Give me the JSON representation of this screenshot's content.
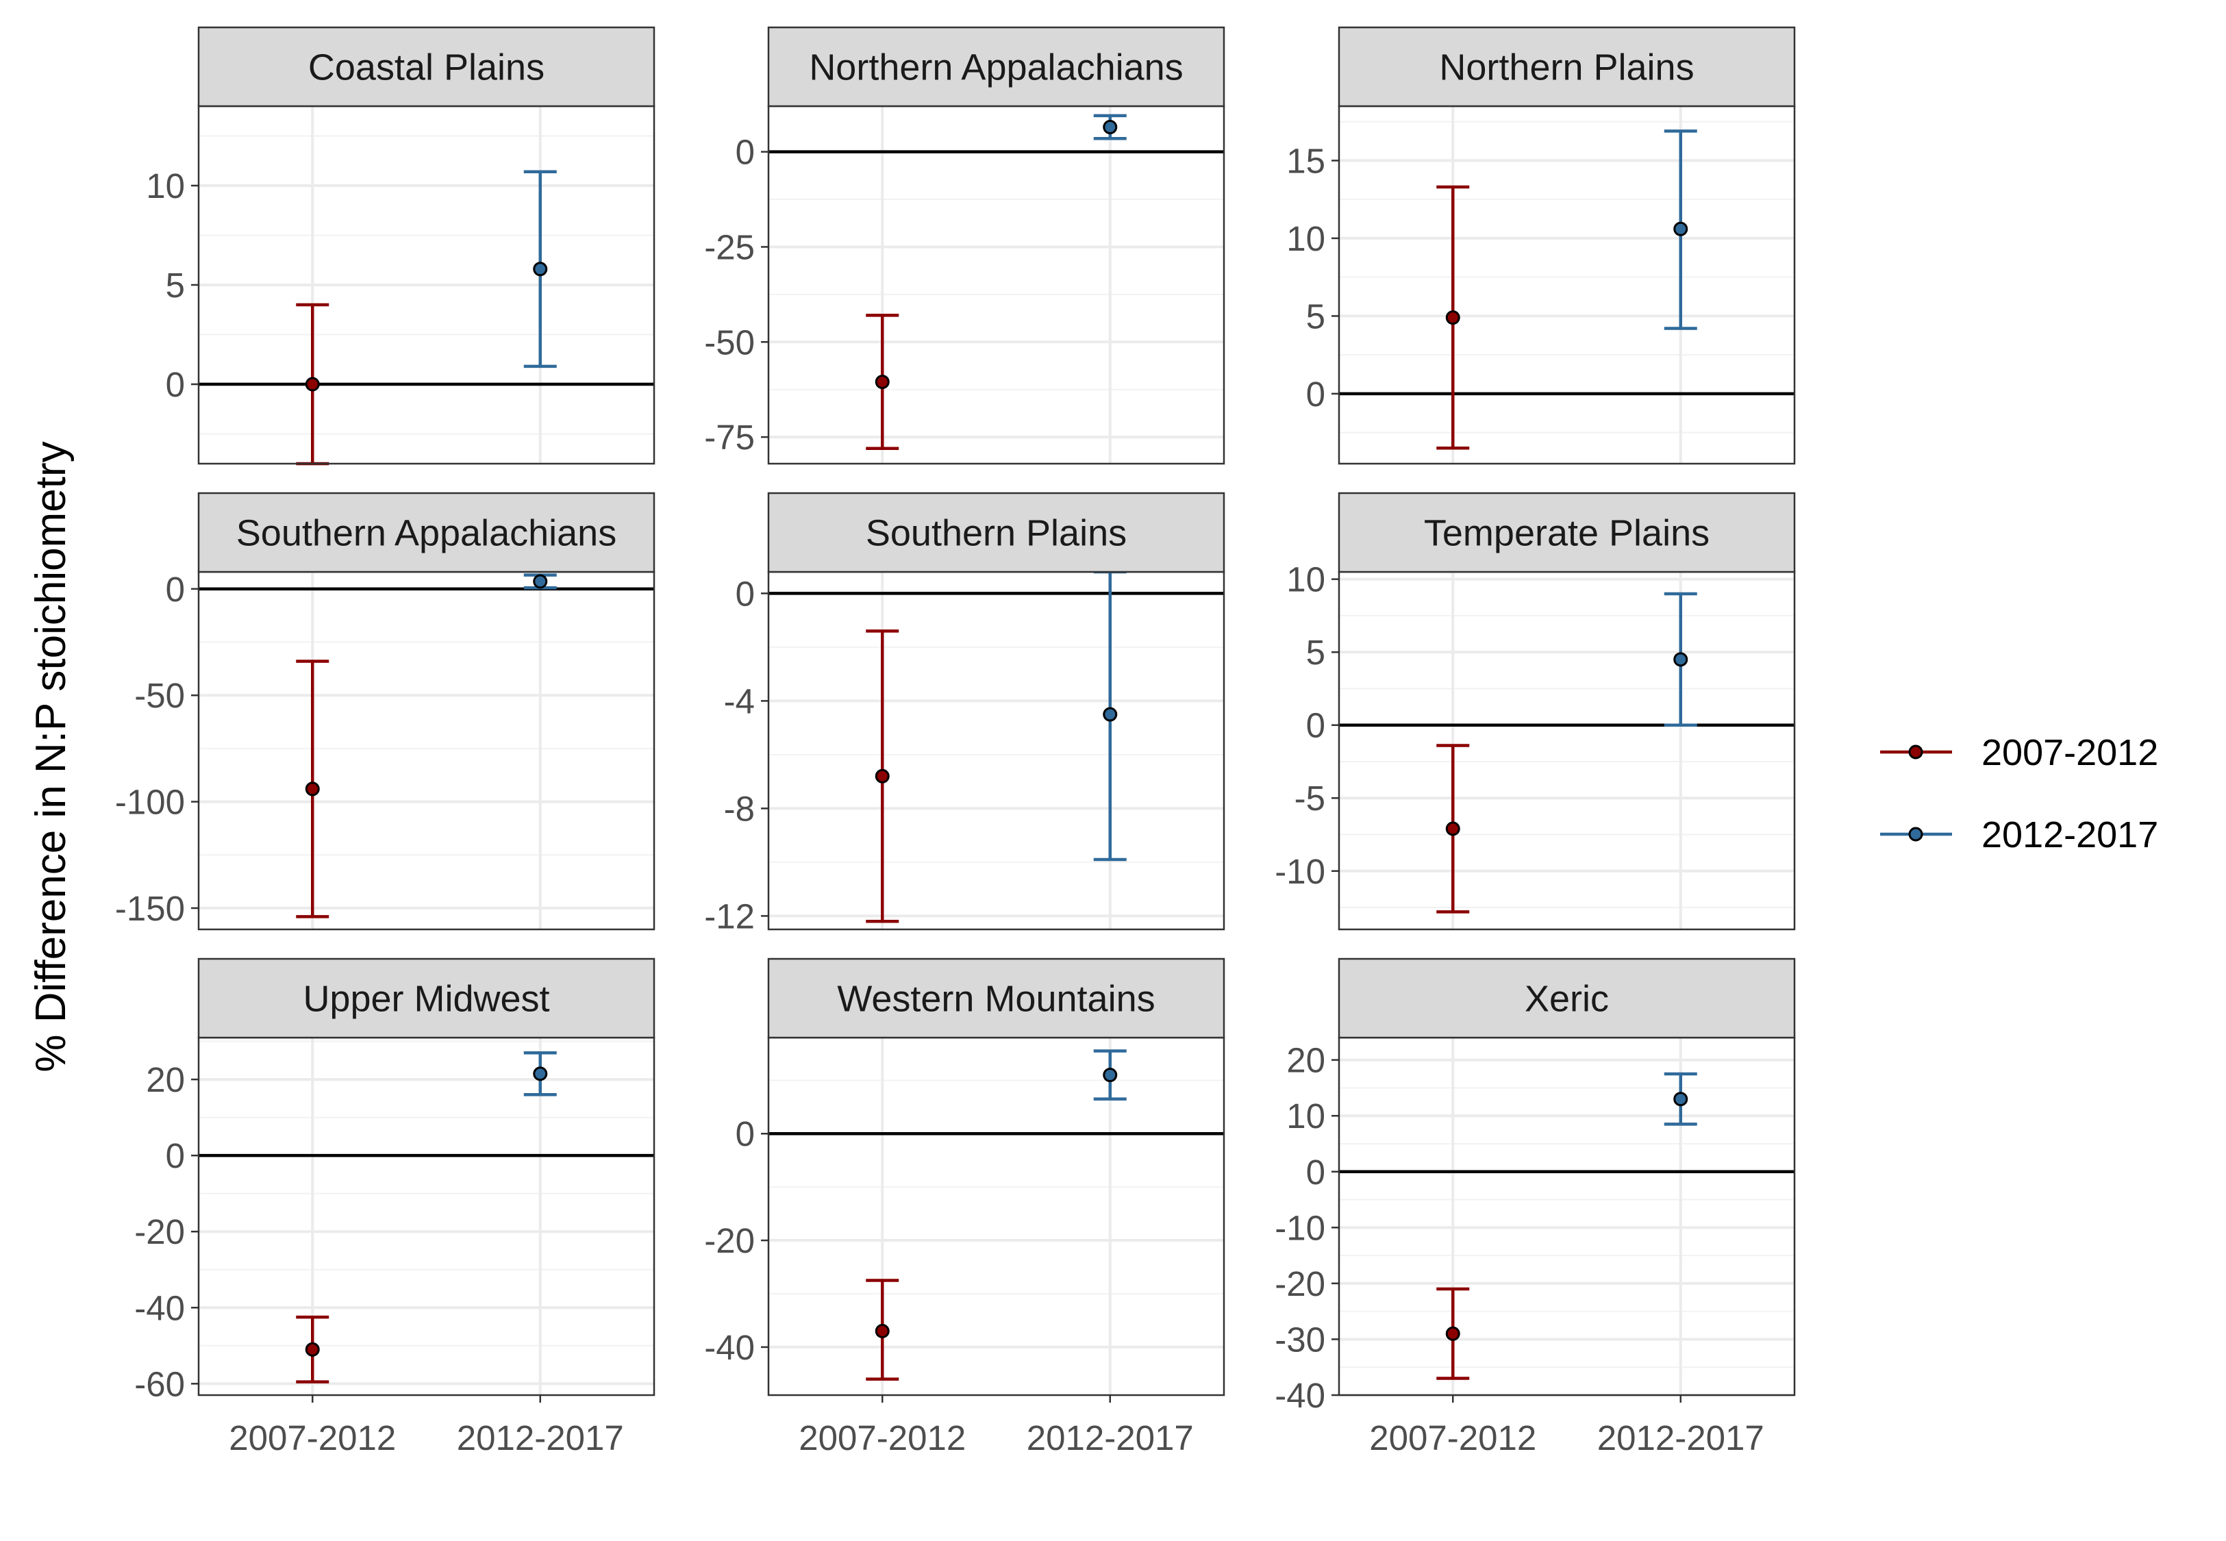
{
  "chart_data": {
    "type": "errorbar",
    "ylabel": "% Difference in N:P stoichiometry",
    "xlabel": "",
    "categories": [
      "2007-2012",
      "2012-2017"
    ],
    "legend": {
      "placement": "right",
      "entries": [
        {
          "label": "2007-2012",
          "color": "#8B0000"
        },
        {
          "label": "2012-2017",
          "color": "#2F6A9A"
        }
      ]
    },
    "reference_line": 0,
    "grid": true,
    "panels": [
      {
        "title": "Coastal Plains",
        "ylim": [
          -4.0,
          14.0
        ],
        "yticks": [
          "10",
          "5",
          "0"
        ],
        "ytick_values": [
          10,
          5,
          0
        ],
        "points": [
          {
            "period": "2007-2012",
            "value": 0.0,
            "lower": -4.0,
            "upper": 4.0
          },
          {
            "period": "2012-2017",
            "value": 5.8,
            "lower": 0.9,
            "upper": 10.7
          }
        ]
      },
      {
        "title": "Northern Appalachians",
        "ylim": [
          -82,
          12
        ],
        "yticks": [
          "0",
          "-25",
          "-50",
          "-75"
        ],
        "ytick_values": [
          0,
          -25,
          -50,
          -75
        ],
        "points": [
          {
            "period": "2007-2012",
            "value": -60.5,
            "lower": -78.0,
            "upper": -43.0
          },
          {
            "period": "2012-2017",
            "value": 6.5,
            "lower": 3.5,
            "upper": 9.5
          }
        ]
      },
      {
        "title": "Northern Plains",
        "ylim": [
          -4.5,
          18.5
        ],
        "yticks": [
          "15",
          "10",
          "5",
          "0"
        ],
        "ytick_values": [
          15,
          10,
          5,
          0
        ],
        "points": [
          {
            "period": "2007-2012",
            "value": 4.9,
            "lower": -3.5,
            "upper": 13.3
          },
          {
            "period": "2012-2017",
            "value": 10.6,
            "lower": 4.2,
            "upper": 16.9
          }
        ]
      },
      {
        "title": "Southern Appalachians",
        "ylim": [
          -160,
          8
        ],
        "yticks": [
          "0",
          "-50",
          "-100",
          "-150"
        ],
        "ytick_values": [
          0,
          -50,
          -100,
          -150
        ],
        "points": [
          {
            "period": "2007-2012",
            "value": -94.0,
            "lower": -154.0,
            "upper": -34.0
          },
          {
            "period": "2012-2017",
            "value": 3.5,
            "lower": 0.5,
            "upper": 6.5
          }
        ]
      },
      {
        "title": "Southern Plains",
        "ylim": [
          -12.5,
          0.8
        ],
        "yticks": [
          "0",
          "-4",
          "-8",
          "-12"
        ],
        "ytick_values": [
          0,
          -4,
          -8,
          -12
        ],
        "points": [
          {
            "period": "2007-2012",
            "value": -6.8,
            "lower": -12.2,
            "upper": -1.4
          },
          {
            "period": "2012-2017",
            "value": -4.5,
            "lower": -9.9,
            "upper": 0.8
          }
        ]
      },
      {
        "title": "Temperate Plains",
        "ylim": [
          -14.0,
          10.5
        ],
        "yticks": [
          "10",
          "5",
          "0",
          "-5",
          "-10"
        ],
        "ytick_values": [
          10,
          5,
          0,
          -5,
          -10
        ],
        "points": [
          {
            "period": "2007-2012",
            "value": -7.1,
            "lower": -12.8,
            "upper": -1.4
          },
          {
            "period": "2012-2017",
            "value": 4.5,
            "lower": 0.0,
            "upper": 9.0
          }
        ]
      },
      {
        "title": "Upper Midwest",
        "ylim": [
          -63,
          31
        ],
        "yticks": [
          "20",
          "0",
          "-20",
          "-40",
          "-60"
        ],
        "ytick_values": [
          20,
          0,
          -20,
          -40,
          -60
        ],
        "points": [
          {
            "period": "2007-2012",
            "value": -51.0,
            "lower": -59.5,
            "upper": -42.5
          },
          {
            "period": "2012-2017",
            "value": 21.5,
            "lower": 16.0,
            "upper": 27.0
          }
        ]
      },
      {
        "title": "Western Mountains",
        "ylim": [
          -49,
          18
        ],
        "yticks": [
          "0",
          "-20",
          "-40"
        ],
        "ytick_values": [
          0,
          -20,
          -40
        ],
        "points": [
          {
            "period": "2007-2012",
            "value": -37.0,
            "lower": -46.0,
            "upper": -27.5
          },
          {
            "period": "2012-2017",
            "value": 11.0,
            "lower": 6.5,
            "upper": 15.5
          }
        ]
      },
      {
        "title": "Xeric",
        "ylim": [
          -40,
          24
        ],
        "yticks": [
          "20",
          "10",
          "0",
          "-10",
          "-20",
          "-30",
          "-40"
        ],
        "ytick_values": [
          20,
          10,
          0,
          -10,
          -20,
          -30,
          -40
        ],
        "points": [
          {
            "period": "2007-2012",
            "value": -29.0,
            "lower": -37.0,
            "upper": -21.0
          },
          {
            "period": "2012-2017",
            "value": 13.0,
            "lower": 8.5,
            "upper": 17.5
          }
        ]
      }
    ]
  }
}
